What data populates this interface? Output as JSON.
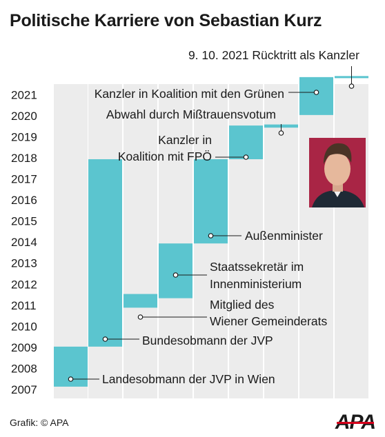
{
  "title": "Politische Karriere von Sebastian Kurz",
  "credit": "Grafik: © APA",
  "logo_text": "APA",
  "colors": {
    "bar": "#5bc5cf",
    "lane": "#ececec",
    "accent": "#d5001c",
    "text": "#1a1a1a"
  },
  "chart_data": {
    "type": "bar",
    "orientation": "floating-vertical",
    "y_unit": "year",
    "ylim": [
      2007,
      2021.5
    ],
    "year_ticks": [
      "2007",
      "2008",
      "2009",
      "2010",
      "2011",
      "2012",
      "2013",
      "2014",
      "2015",
      "2016",
      "2017",
      "2018",
      "2019",
      "2020",
      "2021"
    ],
    "grid": false,
    "series": [
      {
        "label": "Landesobmann der JVP in Wien",
        "start": 2007.1,
        "end": 2009.0
      },
      {
        "label": "Bundesobmann der JVP",
        "start": 2009.0,
        "end": 2017.9
      },
      {
        "label": "Mitglied des Wiener Gemeinderats",
        "start": 2010.85,
        "end": 2011.5
      },
      {
        "label": "Staatssekretär im Innenministerium",
        "start": 2011.3,
        "end": 2013.9
      },
      {
        "label": "Außenminister",
        "start": 2013.9,
        "end": 2017.9
      },
      {
        "label": "Kanzler in Koalition mit FPÖ",
        "start": 2017.9,
        "end": 2019.5
      },
      {
        "label": "Abwahl durch Mißtrauensvotum",
        "start": 2019.4,
        "end": 2019.55
      },
      {
        "label": "Kanzler in Koalition mit den Grünen",
        "start": 2020.0,
        "end": 2021.8
      },
      {
        "label": "9. 10. 2021 Rücktritt als Kanzler",
        "start": 2021.75,
        "end": 2021.85
      }
    ]
  }
}
